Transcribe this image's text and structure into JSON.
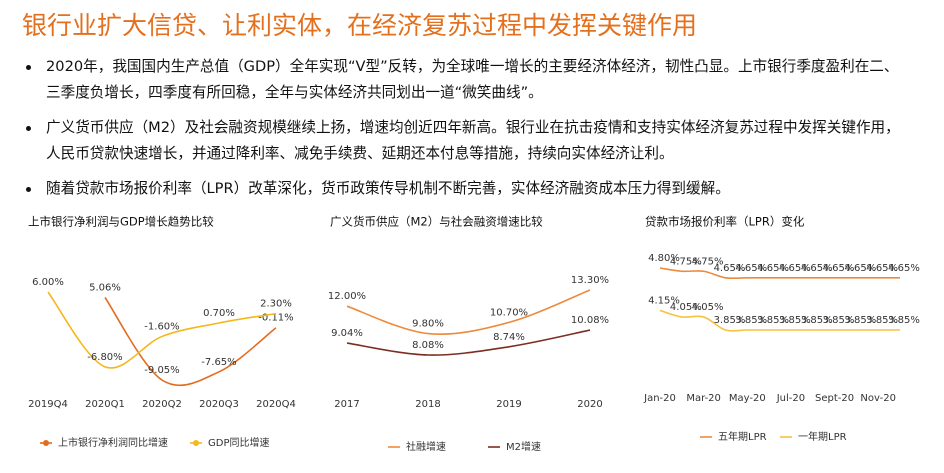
{
  "header": {
    "title": "银行业扩大信贷、让利实体，在经济复苏过程中发挥关键作用"
  },
  "bullets": [
    "2020年，我国国内生产总值（GDP）全年实现“V型”反转，为全球唯一增长的主要经济体经济，韧性凸显。上市银行季度盈利在二、三季度负增长，四季度有所回稳，全年与实体经济共同划出一道“微笑曲线”。",
    "广义货币供应（M2）及社会融资规模继续上扬，增速均创近四年新高。银行业在抗击疫情和支持实体经济复苏过程中发挥关键作用，人民币贷款快速增长，并通过降利率、减免手续费、延期还本付息等措施，持续向实体经济让利。",
    "随着贷款市场报价利率（LPR）改革深化，货币政策传导机制不断完善，实体经济融资成本压力得到缓解。"
  ],
  "chart_data": [
    {
      "type": "line",
      "title": "上市银行净利润与GDP增长趋势比较",
      "categories": [
        "2019Q4",
        "2020Q1",
        "2020Q2",
        "2020Q3",
        "2020Q4"
      ],
      "series": [
        {
          "name": "上市银行净利润同比增速",
          "color": "#e46c1e",
          "values": [
            null,
            5.06,
            -9.05,
            -7.65,
            -0.11
          ],
          "value_labels": [
            null,
            "5.06%",
            "-9.05%",
            "-7.65%",
            "-0.11%"
          ]
        },
        {
          "name": "GDP同比增速",
          "color": "#f5b81c",
          "values": [
            6.0,
            -6.8,
            -1.6,
            0.7,
            2.3
          ],
          "value_labels": [
            "6.00%",
            "-6.80%",
            "-1.60%",
            "0.70%",
            "2.30%"
          ]
        }
      ],
      "legend_marker": "dot"
    },
    {
      "type": "line",
      "title": "广义货币供应（M2）与社会融资增速比较",
      "categories": [
        "2017",
        "2018",
        "2019",
        "2020"
      ],
      "series": [
        {
          "name": "社融增速",
          "color": "#ee8a3c",
          "values": [
            12.0,
            9.8,
            10.7,
            13.3
          ],
          "value_labels": [
            "12.00%",
            "9.80%",
            "10.70%",
            "13.30%"
          ]
        },
        {
          "name": "M2增速",
          "color": "#7b2e22",
          "values": [
            9.04,
            8.08,
            8.74,
            10.08
          ],
          "value_labels": [
            "9.04%",
            "8.08%",
            "8.74%",
            "10.08%"
          ]
        }
      ],
      "legend_marker": "line"
    },
    {
      "type": "line",
      "title": "贷款市场报价利率（LPR）变化",
      "categories": [
        "Jan-20",
        null,
        "Mar-20",
        null,
        "May-20",
        null,
        "Jul-20",
        null,
        "Sept-20",
        null,
        "Nov-20",
        null
      ],
      "series": [
        {
          "name": "五年期LPR",
          "color": "#ee8a3c",
          "values": [
            4.8,
            4.75,
            4.75,
            4.65,
            4.65,
            4.65,
            4.65,
            4.65,
            4.65,
            4.65,
            4.65,
            4.65
          ],
          "value_labels": [
            "4.80%",
            "4.75%",
            "4.75%",
            "4.65%",
            "4.65%",
            "4.65%",
            "4.65%",
            "4.65%",
            "4.65%",
            "4.65%",
            "4.65%",
            "4.65%"
          ]
        },
        {
          "name": "一年期LPR",
          "color": "#f5c242",
          "values": [
            4.15,
            4.05,
            4.05,
            3.85,
            3.85,
            3.85,
            3.85,
            3.85,
            3.85,
            3.85,
            3.85,
            3.85
          ],
          "value_labels": [
            "4.15%",
            "4.05%",
            "4.05%",
            "3.85%",
            "3.85%",
            "3.85%",
            "3.85%",
            "3.85%",
            "3.85%",
            "3.85%",
            "3.85%",
            "3.85%"
          ]
        }
      ],
      "legend_marker": "line"
    }
  ]
}
